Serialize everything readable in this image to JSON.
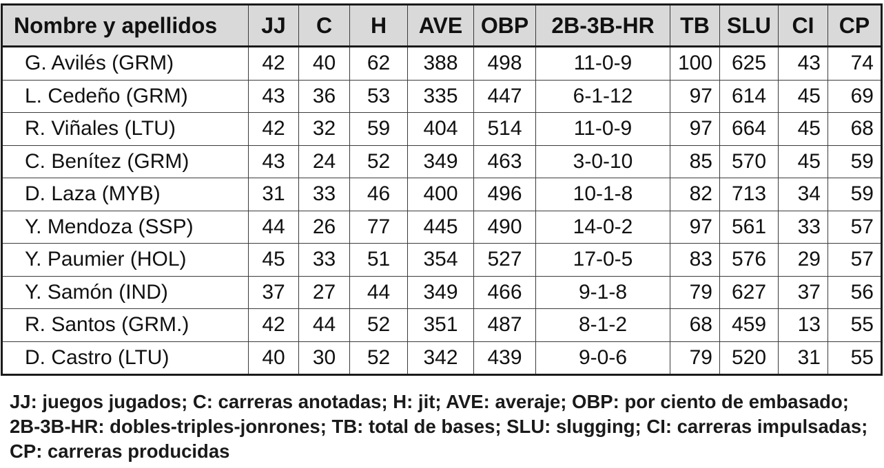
{
  "table": {
    "headers": [
      "Nombre y apellidos",
      "JJ",
      "C",
      "H",
      "AVE",
      "OBP",
      "2B-3B-HR",
      "TB",
      "SLU",
      "CI",
      "CP"
    ],
    "rows": [
      [
        "G. Avilés (GRM)",
        "42",
        "40",
        "62",
        "388",
        "498",
        "11-0-9",
        "100",
        "625",
        "43",
        "74"
      ],
      [
        "L. Cedeño (GRM)",
        "43",
        "36",
        "53",
        "335",
        "447",
        "6-1-12",
        "97",
        "614",
        "45",
        "69"
      ],
      [
        "R. Viñales (LTU)",
        "42",
        "32",
        "59",
        "404",
        "514",
        "11-0-9",
        "97",
        "664",
        "45",
        "68"
      ],
      [
        "C. Benítez (GRM)",
        "43",
        "24",
        "52",
        "349",
        "463",
        "3-0-10",
        "85",
        "570",
        "45",
        "59"
      ],
      [
        "D. Laza (MYB)",
        "31",
        "33",
        "46",
        "400",
        "496",
        "10-1-8",
        "82",
        "713",
        "34",
        "59"
      ],
      [
        "Y. Mendoza (SSP)",
        "44",
        "26",
        "77",
        "445",
        "490",
        "14-0-2",
        "97",
        "561",
        "33",
        "57"
      ],
      [
        "Y. Paumier (HOL)",
        "45",
        "33",
        "51",
        "354",
        "527",
        "17-0-5",
        "83",
        "576",
        "29",
        "57"
      ],
      [
        "Y. Samón (IND)",
        "37",
        "27",
        "44",
        "349",
        "466",
        "9-1-8",
        "79",
        "627",
        "37",
        "56"
      ],
      [
        "R. Santos (GRM.)",
        "42",
        "44",
        "52",
        "351",
        "487",
        "8-1-2",
        "68",
        "459",
        "13",
        "55"
      ],
      [
        "D. Castro (LTU)",
        "40",
        "30",
        "52",
        "342",
        "439",
        "9-0-6",
        "79",
        "520",
        "31",
        "55"
      ]
    ]
  },
  "legend": {
    "text": "JJ: juegos jugados; C: carreras anotadas; H: jit; AVE: averaje; OBP: por ciento de embasado; 2B-3B-HR: dobles-triples-jonrones; TB: total de bases; SLU: slugging; CI: carreras impulsadas; CP: carreras producidas"
  },
  "colors": {
    "header_bg": "#d9d9d9",
    "border": "#1a1a1a",
    "text": "#111111"
  }
}
